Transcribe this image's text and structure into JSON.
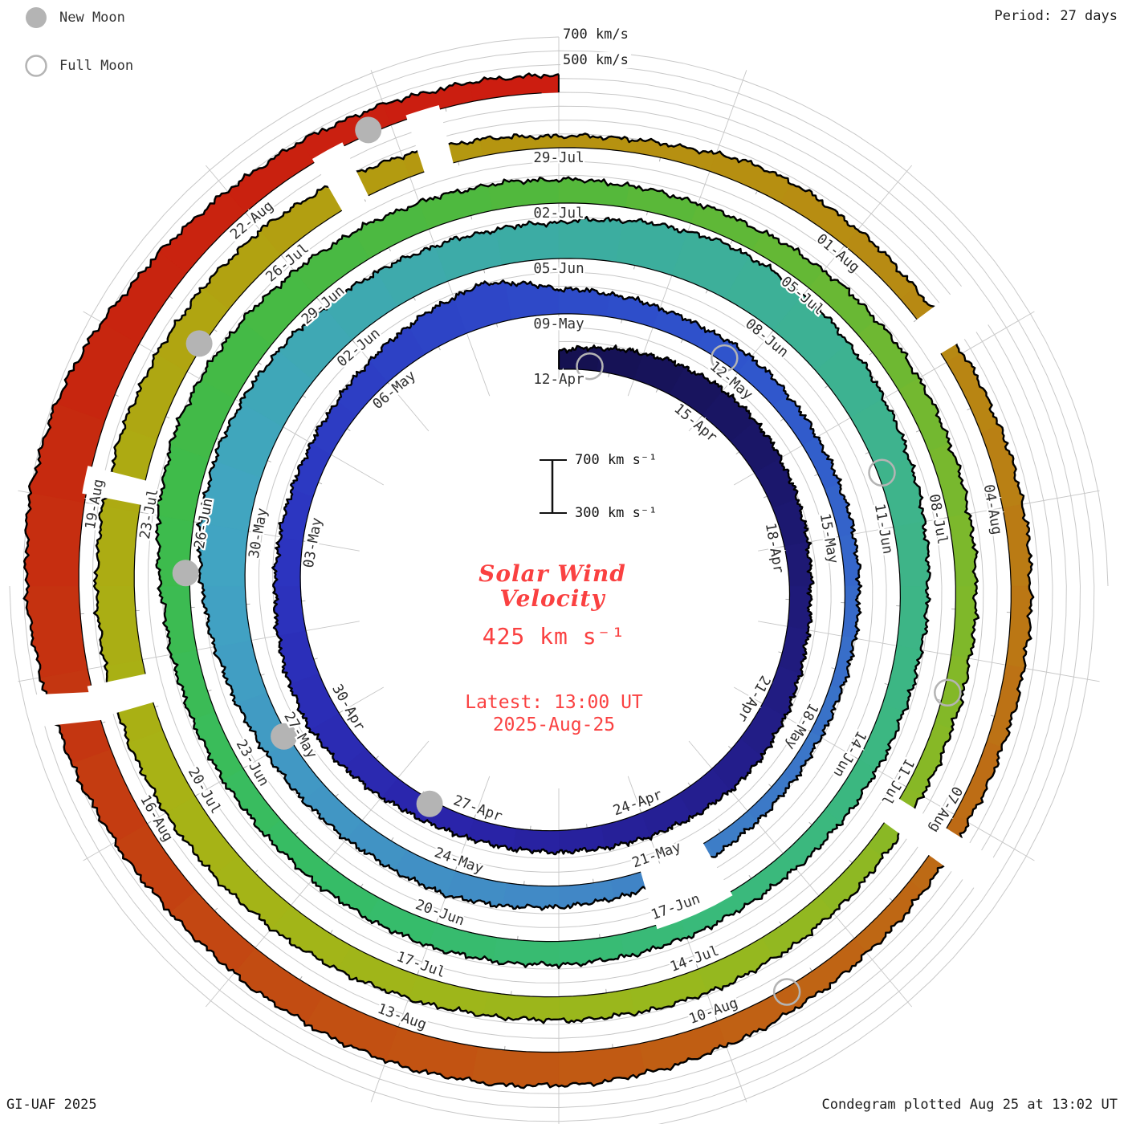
{
  "legend": {
    "new_moon": "New Moon",
    "full_moon": "Full Moon"
  },
  "period_label": "Period: 27 days",
  "outer_scale_labels": {
    "v700": "700 km/s",
    "v500": "500 km/s"
  },
  "center_panel": {
    "scale_top": "700 km s⁻¹",
    "scale_bottom": "300 km s⁻¹",
    "title_line1": "Solar Wind",
    "title_line2": "Velocity",
    "current_value": "425 km s⁻¹",
    "latest_line1": "Latest: 13:00 UT",
    "latest_line2": "2025-Aug-25"
  },
  "footer_left": "GI-UAF 2025",
  "footer_right": "Condegram plotted Aug 25 at 13:02 UT",
  "colors": {
    "accent_red": "#fa4141",
    "gridline": "#c8c8c8",
    "spoke": "#c6c6c6",
    "tick": "#b2b2b2",
    "moon_gray": "#b4b4b4",
    "edge": "#000000",
    "label_text": "#2f2f2f"
  },
  "chart_data": {
    "type": "area (polar spiral condegram)",
    "title": "Solar Wind Velocity",
    "units": "km s⁻¹",
    "start_date": "2025-04-12",
    "end_date_label": "2025-Aug-25",
    "latest_value_kms": 425,
    "latest_time_label": "Latest: 13:00 UT",
    "rotation_period_days": 27,
    "radial_axis": {
      "min_kms": 300,
      "max_kms": 700,
      "gridline_step_kms": 100
    },
    "date_labels": [
      [
        0,
        "12-Apr"
      ],
      [
        3,
        "15-Apr"
      ],
      [
        6,
        "18-Apr"
      ],
      [
        9,
        "21-Apr"
      ],
      [
        12,
        "24-Apr"
      ],
      [
        15,
        "27-Apr"
      ],
      [
        18,
        "30-Apr"
      ],
      [
        21,
        "03-May"
      ],
      [
        24,
        "06-May"
      ],
      [
        27,
        "09-May"
      ],
      [
        30,
        "12-May"
      ],
      [
        33,
        "15-May"
      ],
      [
        36,
        "18-May"
      ],
      [
        39,
        "21-May"
      ],
      [
        42,
        "24-May"
      ],
      [
        45,
        "27-May"
      ],
      [
        48,
        "30-May"
      ],
      [
        51,
        "02-Jun"
      ],
      [
        54,
        "05-Jun"
      ],
      [
        57,
        "08-Jun"
      ],
      [
        60,
        "11-Jun"
      ],
      [
        63,
        "14-Jun"
      ],
      [
        66,
        "17-Jun"
      ],
      [
        69,
        "20-Jun"
      ],
      [
        72,
        "23-Jun"
      ],
      [
        75,
        "26-Jun"
      ],
      [
        78,
        "29-Jun"
      ],
      [
        81,
        "02-Jul"
      ],
      [
        84,
        "05-Jul"
      ],
      [
        87,
        "08-Jul"
      ],
      [
        90,
        "11-Jul"
      ],
      [
        93,
        "14-Jul"
      ],
      [
        96,
        "17-Jul"
      ],
      [
        99,
        "20-Jul"
      ],
      [
        102,
        "23-Jul"
      ],
      [
        105,
        "26-Jul"
      ],
      [
        108,
        "29-Jul"
      ],
      [
        111,
        "01-Aug"
      ],
      [
        114,
        "04-Aug"
      ],
      [
        117,
        "07-Aug"
      ],
      [
        120,
        "10-Aug"
      ],
      [
        123,
        "13-Aug"
      ],
      [
        126,
        "16-Aug"
      ],
      [
        129,
        "19-Aug"
      ],
      [
        132,
        "22-Aug"
      ]
    ],
    "velocity_daily_kms": [
      435,
      480,
      520,
      540,
      530,
      500,
      470,
      450,
      460,
      490,
      510,
      500,
      480,
      460,
      450,
      445,
      460,
      500,
      540,
      520,
      490,
      470,
      460,
      470,
      500,
      550,
      600,
      480,
      460,
      440,
      450,
      430,
      415,
      410,
      400,
      390,
      385,
      395,
      410,
      420,
      440,
      460,
      485,
      470,
      480,
      500,
      540,
      600,
      650,
      660,
      640,
      610,
      580,
      560,
      560,
      620,
      655,
      640,
      600,
      560,
      525,
      495,
      470,
      455,
      445,
      440,
      455,
      465,
      470,
      475,
      465,
      455,
      465,
      475,
      495,
      560,
      600,
      580,
      545,
      515,
      490,
      470,
      455,
      450,
      465,
      475,
      465,
      455,
      445,
      435,
      430,
      450,
      470,
      485,
      475,
      465,
      480,
      505,
      525,
      545,
      565,
      575,
      565,
      555,
      545,
      530,
      490,
      430,
      380,
      400,
      470,
      450,
      430,
      440,
      450,
      440,
      425,
      415,
      430,
      455,
      490,
      530,
      550,
      560,
      545,
      535,
      565,
      610,
      670,
      700,
      660,
      560,
      500,
      470,
      440,
      425
    ],
    "data_gaps_days": [
      {
        "day": 38.8,
        "width": 1.0
      },
      {
        "day": 90.3,
        "width": 0.3
      },
      {
        "day": 100.2,
        "width": 0.3
      },
      {
        "day": 102.2,
        "width": 0.25
      },
      {
        "day": 105.9,
        "width": 0.3
      },
      {
        "day": 106.8,
        "width": 0.3
      },
      {
        "day": 112.2,
        "width": 0.4
      },
      {
        "day": 117.3,
        "width": 0.3
      },
      {
        "day": 127.2,
        "width": 0.35
      }
    ],
    "moons": {
      "full_moon_days": [
        0.6,
        29.7,
        59.3,
        88.9,
        119.3
      ],
      "new_moon_days": [
        15.8,
        45.1,
        74.4,
        103.8,
        133.3
      ]
    },
    "colormap_stops": [
      [
        0,
        "#14104f"
      ],
      [
        8,
        "#201b7e"
      ],
      [
        15,
        "#2a23a8"
      ],
      [
        21,
        "#2c35c0"
      ],
      [
        30,
        "#2f55cc"
      ],
      [
        36,
        "#3a74c8"
      ],
      [
        40,
        "#4187c6"
      ],
      [
        48,
        "#41a5c2"
      ],
      [
        54,
        "#3caca2"
      ],
      [
        60,
        "#3eb489"
      ],
      [
        66,
        "#39ba79"
      ],
      [
        70,
        "#36bc68"
      ],
      [
        75,
        "#3ebb4b"
      ],
      [
        81,
        "#52b83c"
      ],
      [
        87,
        "#7ab82d"
      ],
      [
        93,
        "#97b81e"
      ],
      [
        99,
        "#a7b315"
      ],
      [
        104,
        "#b0a511"
      ],
      [
        108,
        "#b69310"
      ],
      [
        112,
        "#b78a13"
      ],
      [
        117,
        "#bd6b15"
      ],
      [
        121,
        "#c15b13"
      ],
      [
        124,
        "#c24d12"
      ],
      [
        127,
        "#c43711"
      ],
      [
        130,
        "#c7260f"
      ],
      [
        135,
        "#cc1c10"
      ]
    ]
  }
}
